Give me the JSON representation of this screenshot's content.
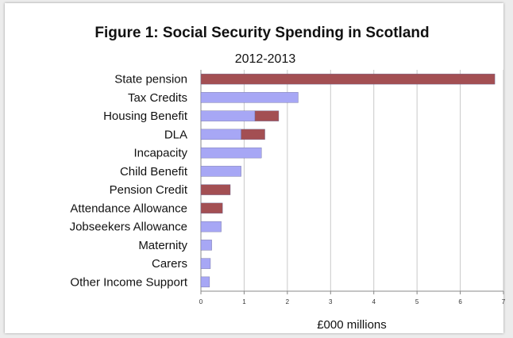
{
  "chart_data": {
    "type": "bar",
    "orientation": "horizontal",
    "stacked": true,
    "title": "Figure 1:  Social Security Spending in Scotland",
    "subtitle": "2012-2013",
    "xlabel": "£000 millions",
    "ylabel": "",
    "xlim": [
      0,
      7
    ],
    "xticks": [
      "0",
      "1",
      "2",
      "3",
      "4",
      "5",
      "6",
      "7"
    ],
    "grid": "vertical",
    "legend": "none",
    "categories": [
      "State pension",
      "Tax Credits",
      "Housing Benefit",
      "DLA",
      "Incapacity",
      "Child Benefit",
      "Pension Credit",
      "Attendance Allowance",
      "Jobseekers Allowance",
      "Maternity",
      "Carers",
      "Other Income Support"
    ],
    "series": [
      {
        "color": "#a7a7f5",
        "values": [
          0,
          2.25,
          1.25,
          0.93,
          1.4,
          0.93,
          0,
          0,
          0.47,
          0.25,
          0.22,
          0.2
        ]
      },
      {
        "color": "#a34f53",
        "values": [
          6.8,
          0,
          0.55,
          0.55,
          0,
          0,
          0.68,
          0.5,
          0,
          0,
          0,
          0
        ]
      }
    ]
  }
}
